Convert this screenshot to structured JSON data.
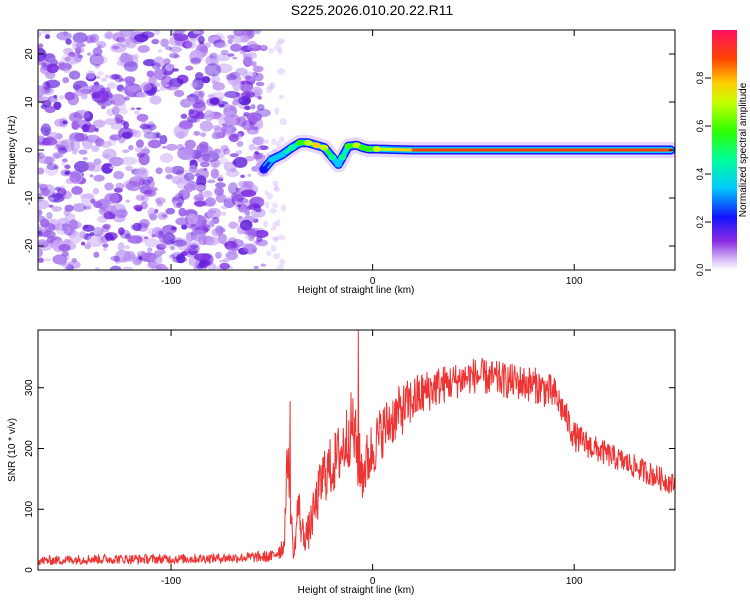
{
  "title": "S225.2026.010.20.22.R11",
  "colors": {
    "snr_line": "#ee3333",
    "speckle_dark": "#7a2be0",
    "speckle_light": "#c9a6f5",
    "axis": "#000000"
  },
  "chart_data": [
    {
      "type": "heatmap",
      "xlabel": "Height of straight line (km)",
      "ylabel": "Frequency (Hz)",
      "xlim": [
        -166,
        150
      ],
      "ylim": [
        -25,
        25
      ],
      "xticks": [
        -100,
        0,
        100
      ],
      "yticks": [
        -20,
        -10,
        0,
        10,
        20
      ],
      "colorbar": {
        "label": "Normalized spectral amplitude",
        "range": [
          0.0,
          1.0
        ],
        "ticks": [
          0.0,
          0.2,
          0.4,
          0.6,
          0.8
        ],
        "tick_labels": [
          "0.0",
          "0.2",
          "0.4",
          "0.6",
          "0.8"
        ]
      },
      "noise_region_x": [
        -166,
        -54
      ],
      "ridge": {
        "x": [
          -54,
          -50,
          -45,
          -40,
          -36,
          -32,
          -28,
          -24,
          -20,
          -17,
          -15,
          -12,
          -8,
          -5,
          -2,
          2,
          10,
          20,
          40,
          80,
          120,
          148
        ],
        "freq_hz": [
          -4,
          -2,
          -1,
          0.5,
          1.5,
          1.5,
          1.0,
          0.5,
          -1.5,
          -3.0,
          -1.5,
          0.8,
          1.0,
          0.5,
          0.2,
          0.2,
          0.1,
          0.0,
          0.0,
          0.0,
          0.0,
          0.0
        ],
        "amplitude": [
          0.3,
          0.35,
          0.45,
          0.5,
          0.6,
          0.75,
          0.8,
          0.7,
          0.5,
          0.4,
          0.5,
          0.6,
          0.7,
          0.65,
          0.6,
          0.7,
          0.85,
          0.9,
          0.95,
          0.95,
          0.95,
          0.95
        ]
      }
    },
    {
      "type": "line",
      "xlabel": "Height of straight line (km)",
      "ylabel": "SNR (10 * v/v)",
      "xlim": [
        -166,
        150
      ],
      "ylim": [
        0,
        395
      ],
      "xticks": [
        -100,
        0,
        100
      ],
      "yticks": [
        0,
        100,
        200,
        300
      ],
      "series": [
        {
          "name": "SNR",
          "x": [
            -166,
            -140,
            -100,
            -70,
            -50,
            -44,
            -42,
            -40,
            -39,
            -37,
            -35,
            -32,
            -28,
            -24,
            -20,
            -15,
            -10,
            -7,
            -5,
            0,
            5,
            10,
            20,
            30,
            40,
            50,
            60,
            70,
            80,
            90,
            95,
            100,
            110,
            120,
            130,
            140,
            150
          ],
          "y": [
            15,
            18,
            18,
            20,
            22,
            40,
            200,
            60,
            20,
            110,
            60,
            60,
            110,
            160,
            170,
            200,
            240,
            180,
            160,
            200,
            230,
            250,
            280,
            300,
            310,
            320,
            315,
            310,
            305,
            290,
            260,
            220,
            200,
            185,
            170,
            155,
            140
          ],
          "noise_amplitude": [
            8,
            8,
            8,
            8,
            10,
            20,
            50,
            30,
            10,
            40,
            30,
            30,
            40,
            50,
            50,
            55,
            60,
            55,
            50,
            50,
            45,
            45,
            40,
            35,
            30,
            30,
            30,
            30,
            30,
            30,
            25,
            25,
            22,
            20,
            20,
            20,
            18
          ],
          "spikes": [
            {
              "x": -41,
              "y": 278
            },
            {
              "x": -7,
              "y": 395
            }
          ]
        }
      ]
    }
  ]
}
